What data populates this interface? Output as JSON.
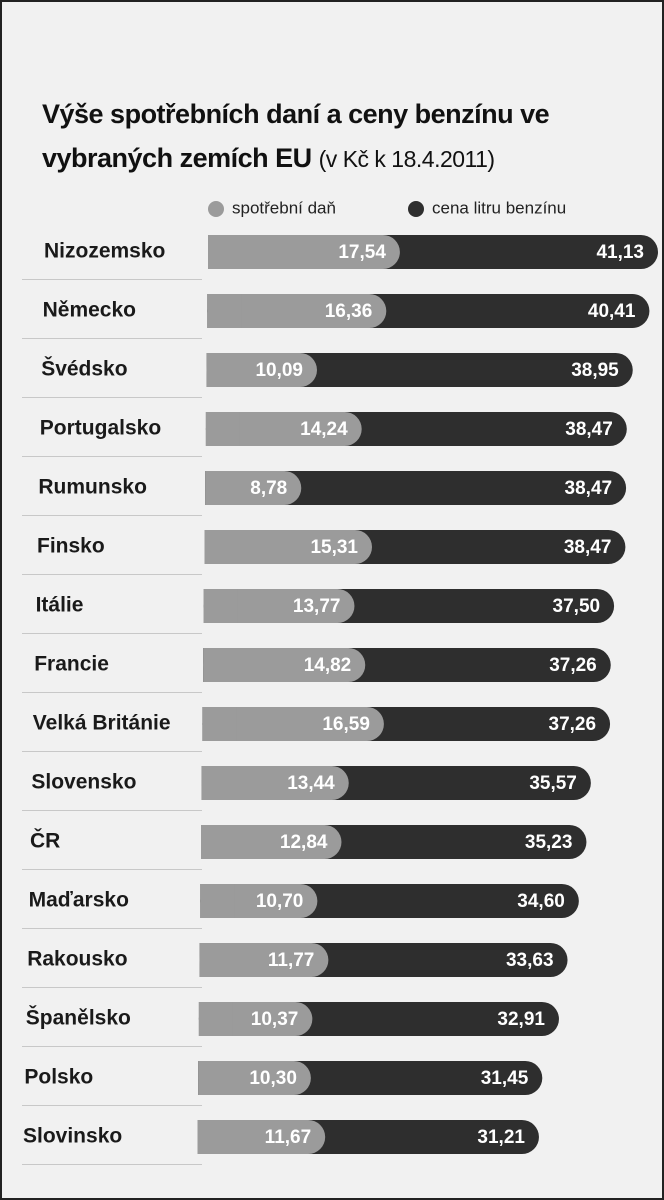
{
  "chart_data": {
    "type": "bar",
    "orientation": "horizontal",
    "title": "Výše spotřebních daní a ceny benzínu ve vybraných zemích EU",
    "subtitle": "(v Kč k 18.4.2011)",
    "categories": [
      "Nizozemsko",
      "Německo",
      "Švédsko",
      "Portugalsko",
      "Rumunsko",
      "Finsko",
      "Itálie",
      "Francie",
      "Velká Británie",
      "Slovensko",
      "ČR",
      "Maďarsko",
      "Rakousko",
      "Španělsko",
      "Polsko",
      "Slovinsko"
    ],
    "series": [
      {
        "name": "spotřební daň",
        "color": "#9b9b9b",
        "values": [
          17.54,
          16.36,
          10.09,
          14.24,
          8.78,
          15.31,
          13.77,
          14.82,
          16.59,
          13.44,
          12.84,
          10.7,
          11.77,
          10.37,
          10.3,
          11.67
        ],
        "value_labels": [
          "17,54",
          "16,36",
          "10,09",
          "14,24",
          "8,78",
          "15,31",
          "13,77",
          "14,82",
          "16,59",
          "13,44",
          "12,84",
          "10,70",
          "11,77",
          "10,37",
          "10,30",
          "11,67"
        ]
      },
      {
        "name": "cena litru benzínu",
        "color": "#2e2e2e",
        "values": [
          41.13,
          40.41,
          38.95,
          38.47,
          38.47,
          38.47,
          37.5,
          37.26,
          37.26,
          35.57,
          35.23,
          34.6,
          33.63,
          32.91,
          31.45,
          31.21
        ],
        "value_labels": [
          "41,13",
          "40,41",
          "38,95",
          "38,47",
          "38,47",
          "38,47",
          "37,50",
          "37,26",
          "37,26",
          "35,57",
          "35,23",
          "34,60",
          "33,63",
          "32,91",
          "31,45",
          "31,21"
        ]
      }
    ]
  }
}
